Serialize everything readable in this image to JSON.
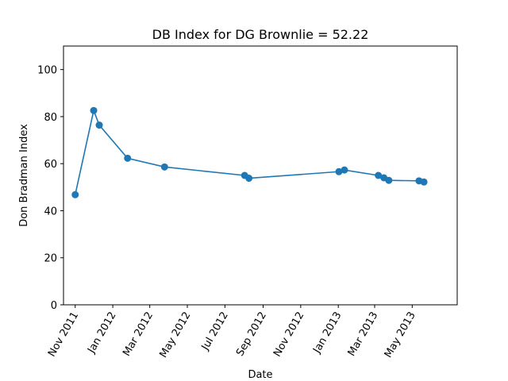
{
  "chart_data": {
    "type": "line",
    "title": "DB Index for DG Brownlie = 52.22",
    "xlabel": "Date",
    "ylabel": "Don Bradman Index",
    "ylim": [
      0,
      110
    ],
    "yticks": [
      0,
      20,
      40,
      60,
      80,
      100
    ],
    "xlim": [
      "2011-10-13",
      "2013-07-13"
    ],
    "xticks": [
      "2011-11-01",
      "2012-01-01",
      "2012-03-01",
      "2012-05-01",
      "2012-07-01",
      "2012-09-01",
      "2012-11-01",
      "2013-01-01",
      "2013-03-01",
      "2013-05-01"
    ],
    "xtick_labels": [
      "Nov 2011",
      "Jan 2012",
      "Mar 2012",
      "May 2012",
      "Jul 2012",
      "Sep 2012",
      "Nov 2012",
      "Jan 2013",
      "Mar 2013",
      "May 2013"
    ],
    "grid": false,
    "series": [
      {
        "color": "#1f77b4",
        "x": [
          "2011-11-01",
          "2011-12-01",
          "2011-12-10",
          "2012-01-25",
          "2012-03-25",
          "2012-08-02",
          "2012-08-09",
          "2013-01-02",
          "2013-01-11",
          "2013-03-07",
          "2013-03-16",
          "2013-03-24",
          "2013-05-12",
          "2013-05-20"
        ],
        "y": [
          46.8,
          82.6,
          76.4,
          62.3,
          58.6,
          55.0,
          53.8,
          56.6,
          57.3,
          55.0,
          54.0,
          52.9,
          52.7,
          52.2
        ]
      }
    ]
  }
}
